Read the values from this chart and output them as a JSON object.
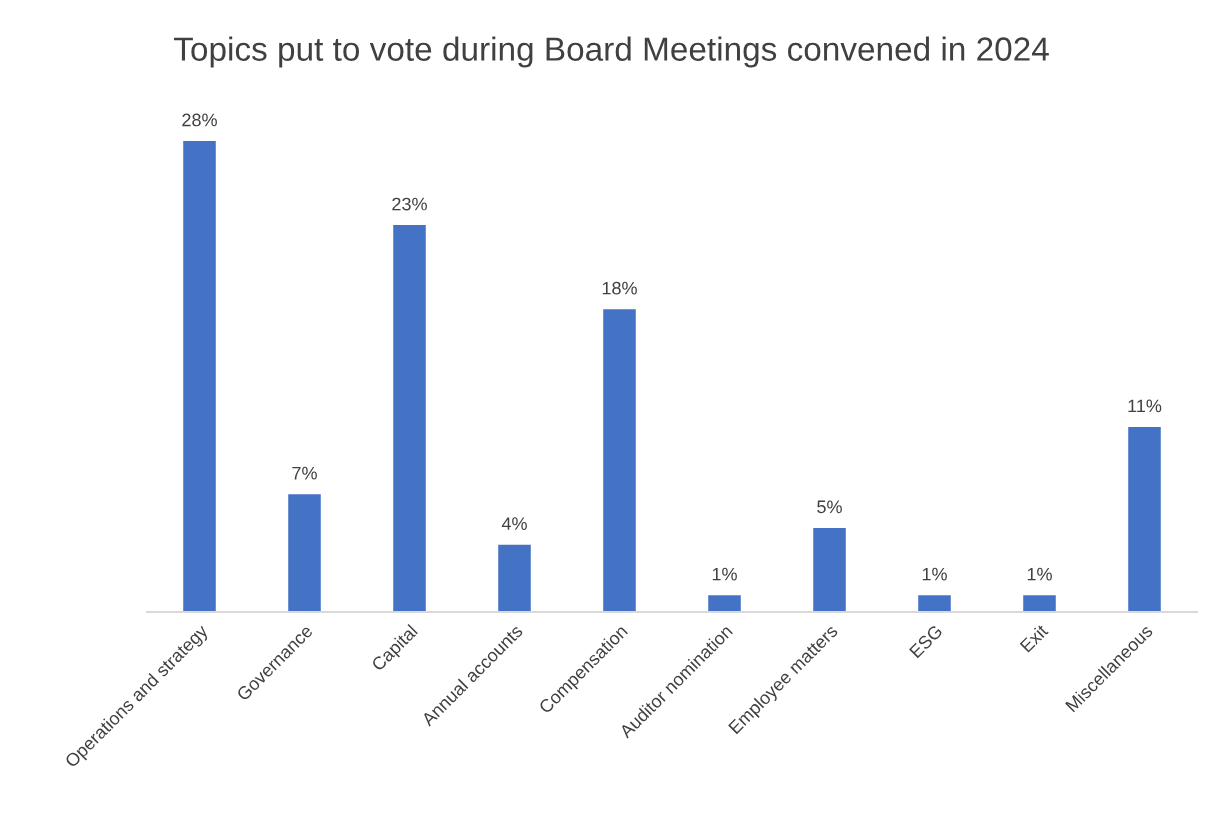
{
  "chart_data": {
    "type": "bar",
    "title": "Topics put to vote during Board Meetings convened in 2024",
    "categories": [
      "Operations and strategy",
      "Governance",
      "Capital",
      "Annual accounts",
      "Compensation",
      "Auditor nomination",
      "Employee matters",
      "ESG",
      "Exit",
      "Miscellaneous"
    ],
    "values": [
      28,
      7,
      23,
      4,
      18,
      1,
      5,
      1,
      1,
      11
    ],
    "value_labels": [
      "28%",
      "7%",
      "23%",
      "4%",
      "18%",
      "1%",
      "5%",
      "1%",
      "1%",
      "11%"
    ],
    "color": "#4472c4",
    "tick_labels": "x"
  }
}
